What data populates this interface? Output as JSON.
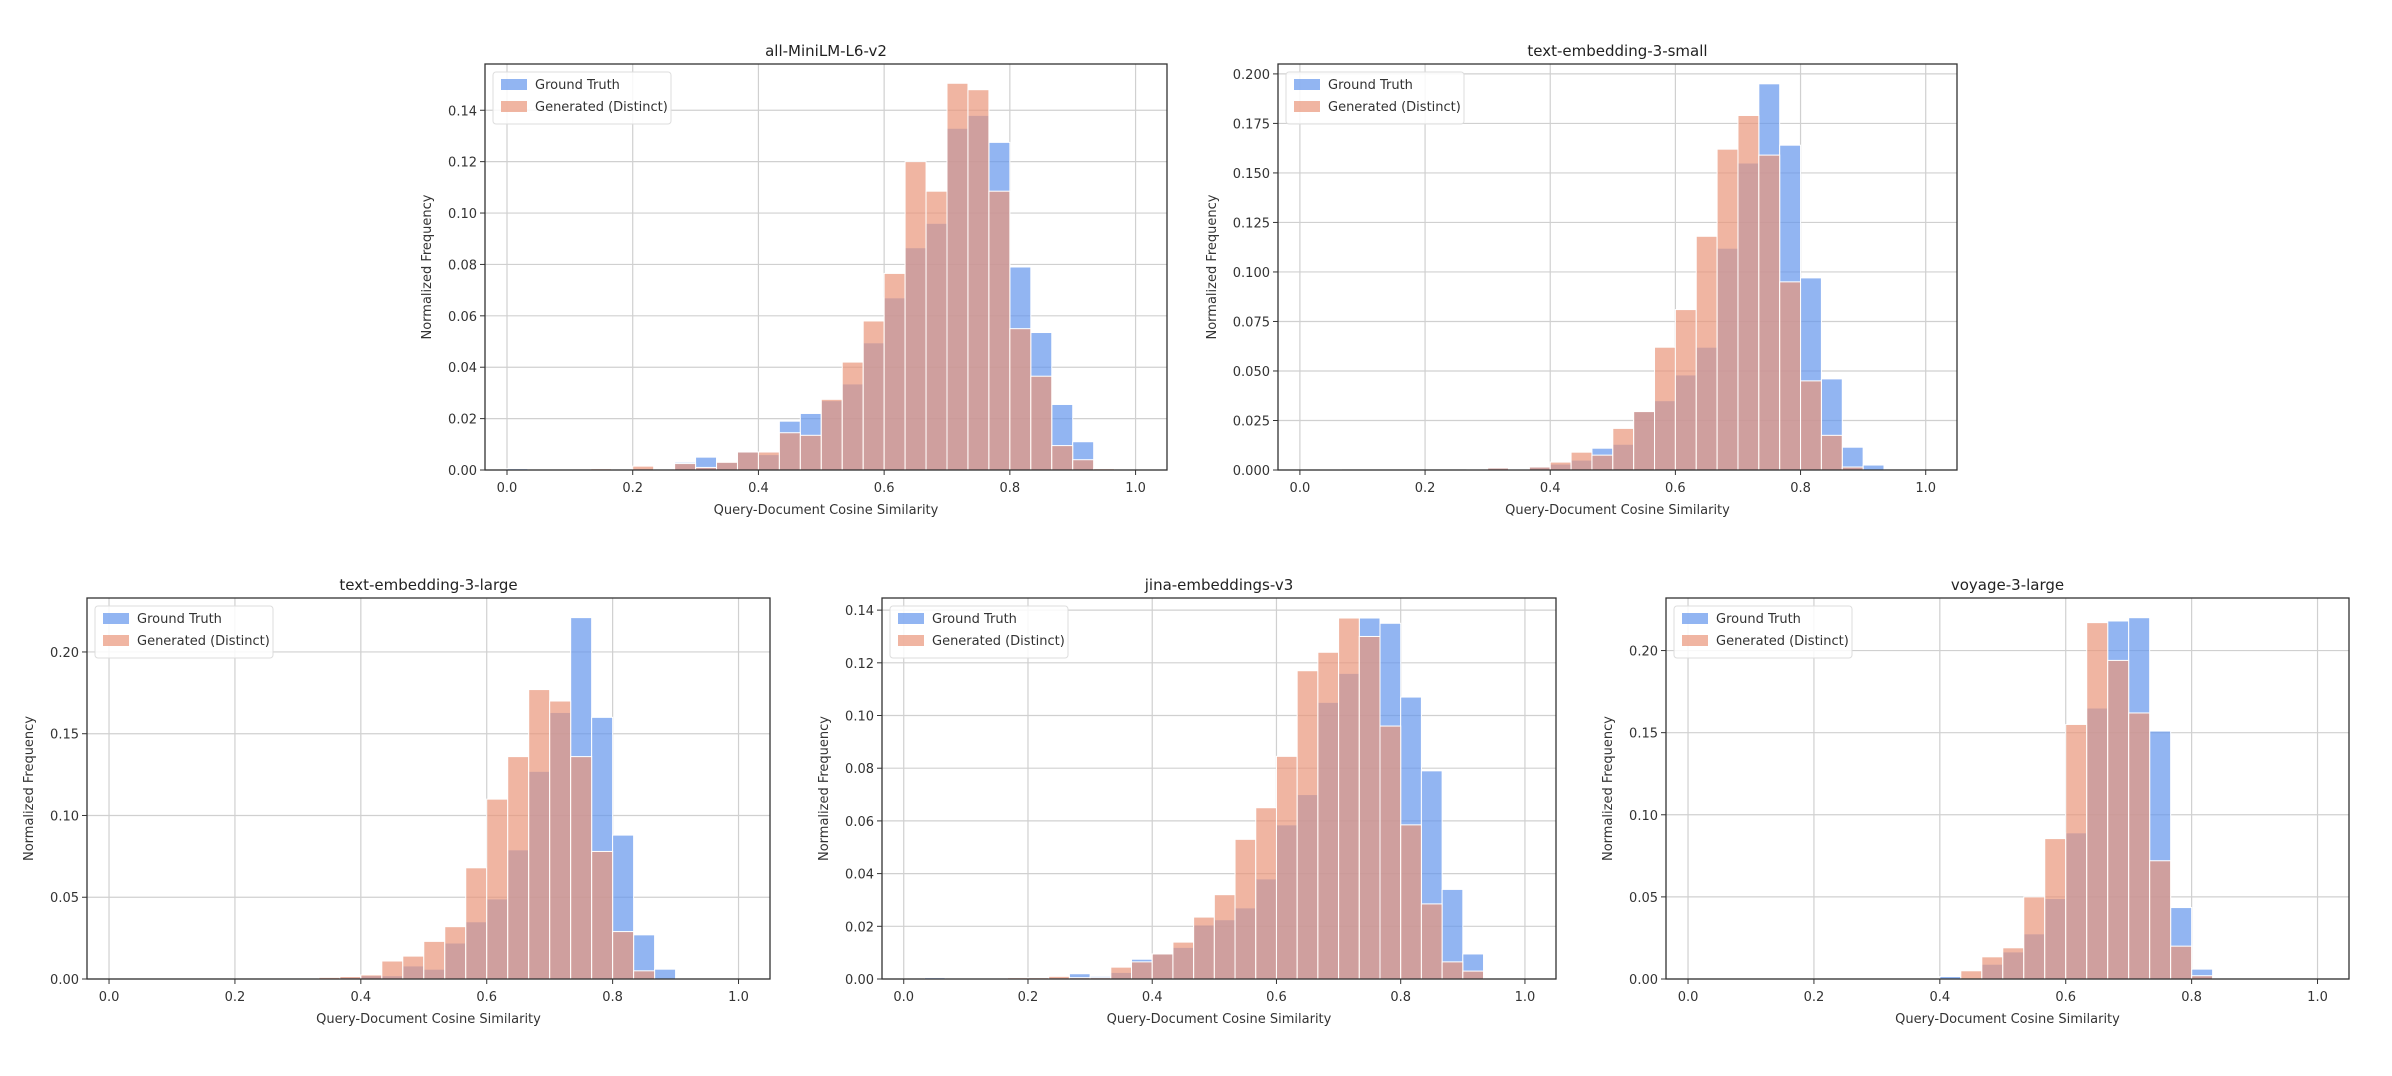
{
  "colors": {
    "ground_truth": "#6495ED",
    "generated": "#E9967A"
  },
  "chart_data": [
    {
      "type": "bar",
      "title": "all-MiniLM-L6-v2",
      "xlabel": "Query-Document Cosine Similarity",
      "ylabel": "Normalized Frequency",
      "xlim": [
        -0.035,
        1.05
      ],
      "ylim": [
        0,
        0.158
      ],
      "bins": 30,
      "bin_range": [
        0,
        1
      ],
      "xticks": [
        0,
        0.2,
        0.4,
        0.6,
        0.8,
        1.0
      ],
      "xtick_labels": [
        "0.0",
        "0.2",
        "0.4",
        "0.6",
        "0.8",
        "1.0"
      ],
      "yticks": [
        0,
        0.02,
        0.04,
        0.06,
        0.08,
        0.1,
        0.12,
        0.14
      ],
      "ytick_labels": [
        "0.00",
        "0.02",
        "0.04",
        "0.06",
        "0.08",
        "0.10",
        "0.12",
        "0.14"
      ],
      "grid": true,
      "legend": "upper-left",
      "series": [
        {
          "name": "Ground Truth",
          "values": [
            0.0005,
            0,
            0,
            0,
            0,
            0,
            0.0005,
            0,
            0.003,
            0.005,
            0.003,
            0.007,
            0.006,
            0.019,
            0.022,
            0.027,
            0.0335,
            0.0495,
            0.067,
            0.0865,
            0.096,
            0.133,
            0.138,
            0.1275,
            0.079,
            0.0535,
            0.0255,
            0.011,
            0,
            0
          ]
        },
        {
          "name": "Generated (Distinct)",
          "values": [
            0,
            0,
            0,
            0,
            0.0005,
            0,
            0.0015,
            0,
            0.0025,
            0.001,
            0.003,
            0.007,
            0.007,
            0.0145,
            0.0135,
            0.0275,
            0.042,
            0.058,
            0.0765,
            0.12,
            0.1085,
            0.1505,
            0.148,
            0.1085,
            0.055,
            0.0365,
            0.0095,
            0.004,
            0.0005,
            0
          ]
        }
      ]
    },
    {
      "type": "bar",
      "title": "text-embedding-3-small",
      "xlabel": "Query-Document Cosine Similarity",
      "ylabel": "Normalized Frequency",
      "xlim": [
        -0.035,
        1.05
      ],
      "ylim": [
        0,
        0.205
      ],
      "bins": 30,
      "bin_range": [
        0,
        1
      ],
      "xticks": [
        0,
        0.2,
        0.4,
        0.6,
        0.8,
        1.0
      ],
      "xtick_labels": [
        "0.0",
        "0.2",
        "0.4",
        "0.6",
        "0.8",
        "1.0"
      ],
      "yticks": [
        0,
        0.025,
        0.05,
        0.075,
        0.1,
        0.125,
        0.15,
        0.175,
        0.2
      ],
      "ytick_labels": [
        "0.000",
        "0.025",
        "0.050",
        "0.075",
        "0.100",
        "0.125",
        "0.150",
        "0.175",
        "0.200"
      ],
      "grid": true,
      "legend": "upper-left",
      "series": [
        {
          "name": "Ground Truth",
          "values": [
            0,
            0.0005,
            0,
            0,
            0,
            0,
            0,
            0,
            0,
            0.001,
            0.001,
            0.0015,
            0.003,
            0.005,
            0.011,
            0.013,
            0.0295,
            0.035,
            0.048,
            0.062,
            0.112,
            0.155,
            0.195,
            0.164,
            0.097,
            0.046,
            0.0115,
            0.0025,
            0,
            0
          ]
        },
        {
          "name": "Generated (Distinct)",
          "values": [
            0,
            0,
            0,
            0,
            0,
            0,
            0,
            0,
            0.0005,
            0.001,
            0.0005,
            0.0015,
            0.004,
            0.009,
            0.0075,
            0.021,
            0.0295,
            0.062,
            0.081,
            0.118,
            0.162,
            0.179,
            0.159,
            0.095,
            0.045,
            0.0175,
            0.0015,
            0,
            0,
            0
          ]
        }
      ]
    },
    {
      "type": "bar",
      "title": "text-embedding-3-large",
      "xlabel": "Query-Document Cosine Similarity",
      "ylabel": "Normalized Frequency",
      "xlim": [
        -0.035,
        1.05
      ],
      "ylim": [
        0,
        0.233
      ],
      "bins": 30,
      "bin_range": [
        0,
        1
      ],
      "xticks": [
        0,
        0.2,
        0.4,
        0.6,
        0.8,
        1.0
      ],
      "xtick_labels": [
        "0.0",
        "0.2",
        "0.4",
        "0.6",
        "0.8",
        "1.0"
      ],
      "yticks": [
        0,
        0.05,
        0.1,
        0.15,
        0.2
      ],
      "ytick_labels": [
        "0.00",
        "0.05",
        "0.10",
        "0.15",
        "0.20"
      ],
      "grid": true,
      "legend": "upper-left",
      "series": [
        {
          "name": "Ground Truth",
          "values": [
            0,
            0,
            0,
            0,
            0,
            0,
            0,
            0,
            0,
            0,
            0.0005,
            0.001,
            0.002,
            0.002,
            0.008,
            0.006,
            0.022,
            0.035,
            0.049,
            0.079,
            0.127,
            0.163,
            0.221,
            0.16,
            0.088,
            0.027,
            0.006,
            0,
            0,
            0
          ]
        },
        {
          "name": "Generated (Distinct)",
          "values": [
            0,
            0,
            0,
            0,
            0,
            0,
            0,
            0,
            0,
            0,
            0.001,
            0.0015,
            0.0025,
            0.011,
            0.014,
            0.023,
            0.032,
            0.068,
            0.11,
            0.136,
            0.177,
            0.17,
            0.136,
            0.078,
            0.029,
            0.005,
            0,
            0,
            0,
            0
          ]
        }
      ]
    },
    {
      "type": "bar",
      "title": "jina-embeddings-v3",
      "xlabel": "Query-Document Cosine Similarity",
      "ylabel": "Normalized Frequency",
      "xlim": [
        -0.035,
        1.05
      ],
      "ylim": [
        0,
        0.1446
      ],
      "bins": 30,
      "bin_range": [
        0,
        1
      ],
      "xticks": [
        0,
        0.2,
        0.4,
        0.6,
        0.8,
        1.0
      ],
      "xtick_labels": [
        "0.0",
        "0.2",
        "0.4",
        "0.6",
        "0.8",
        "1.0"
      ],
      "yticks": [
        0,
        0.02,
        0.04,
        0.06,
        0.08,
        0.1,
        0.12,
        0.14
      ],
      "ytick_labels": [
        "0.00",
        "0.02",
        "0.04",
        "0.06",
        "0.08",
        "0.10",
        "0.12",
        "0.14"
      ],
      "grid": true,
      "legend": "upper-left",
      "series": [
        {
          "name": "Ground Truth",
          "values": [
            0,
            0.0005,
            0,
            0,
            0,
            0,
            0,
            0.0005,
            0.002,
            0.001,
            0.0025,
            0.0075,
            0.0095,
            0.012,
            0.0205,
            0.0225,
            0.027,
            0.038,
            0.0585,
            0.07,
            0.105,
            0.116,
            0.137,
            0.135,
            0.107,
            0.079,
            0.034,
            0.0095,
            0,
            0
          ]
        },
        {
          "name": "Generated (Distinct)",
          "values": [
            0,
            0,
            0,
            0,
            0,
            0.0005,
            0.0005,
            0.001,
            0.0005,
            0.0005,
            0.0045,
            0.0065,
            0.0095,
            0.014,
            0.0235,
            0.032,
            0.053,
            0.065,
            0.0845,
            0.117,
            0.124,
            0.137,
            0.13,
            0.096,
            0.0585,
            0.0285,
            0.0065,
            0.003,
            0,
            0
          ]
        }
      ]
    },
    {
      "type": "bar",
      "title": "voyage-3-large",
      "xlabel": "Query-Document Cosine Similarity",
      "ylabel": "Normalized Frequency",
      "xlim": [
        -0.035,
        1.05
      ],
      "ylim": [
        0,
        0.232
      ],
      "bins": 30,
      "bin_range": [
        0,
        1
      ],
      "xticks": [
        0,
        0.2,
        0.4,
        0.6,
        0.8,
        1.0
      ],
      "xtick_labels": [
        "0.0",
        "0.2",
        "0.4",
        "0.6",
        "0.8",
        "1.0"
      ],
      "yticks": [
        0,
        0.05,
        0.1,
        0.15,
        0.2
      ],
      "ytick_labels": [
        "0.00",
        "0.05",
        "0.10",
        "0.15",
        "0.20"
      ],
      "grid": true,
      "legend": "upper-left",
      "series": [
        {
          "name": "Ground Truth",
          "values": [
            0,
            0,
            0,
            0,
            0,
            0,
            0,
            0,
            0,
            0,
            0,
            0,
            0.0015,
            0,
            0.009,
            0.0165,
            0.0275,
            0.049,
            0.089,
            0.165,
            0.218,
            0.22,
            0.151,
            0.0435,
            0.006,
            0,
            0,
            0,
            0,
            0
          ]
        },
        {
          "name": "Generated (Distinct)",
          "values": [
            0,
            0,
            0,
            0,
            0,
            0,
            0,
            0,
            0,
            0,
            0,
            0,
            0,
            0.005,
            0.0135,
            0.019,
            0.05,
            0.0855,
            0.155,
            0.217,
            0.194,
            0.162,
            0.072,
            0.02,
            0.002,
            0,
            0,
            0,
            0,
            0
          ]
        }
      ]
    }
  ]
}
